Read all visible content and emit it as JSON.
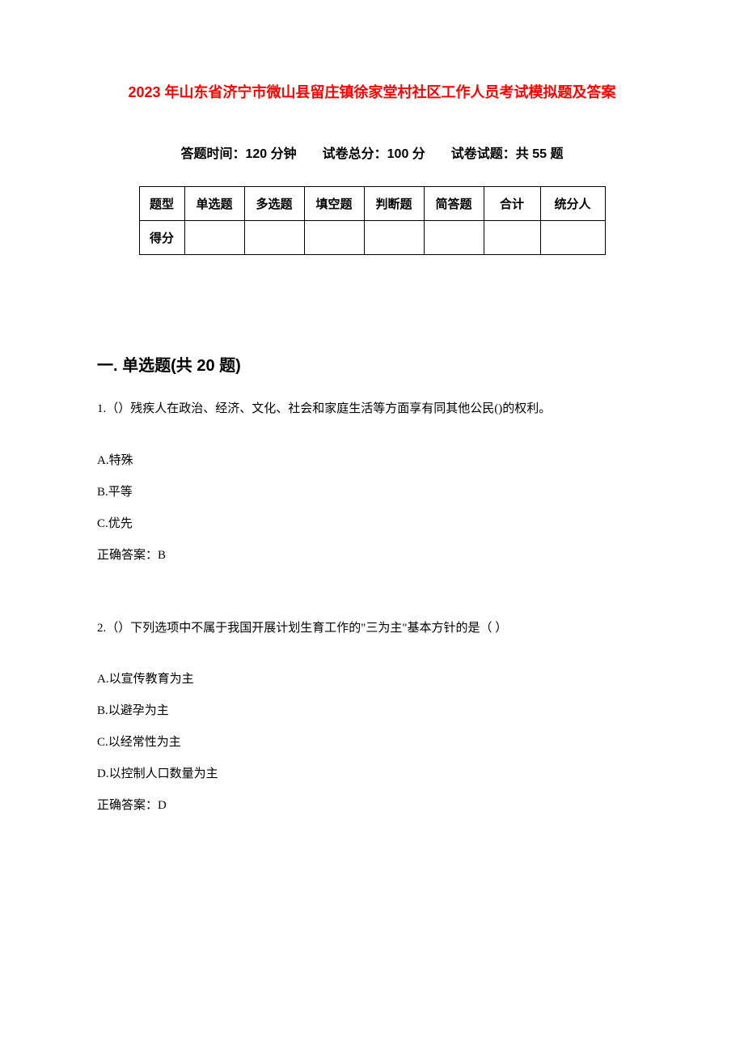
{
  "document": {
    "title": "2023 年山东省济宁市微山县留庄镇徐家堂村社区工作人员考试模拟题及答案",
    "title_color": "#ff0000",
    "title_fontsize": 18,
    "exam_info": "答题时间：120 分钟　　试卷总分：100 分　　试卷试题：共 55 题",
    "info_fontsize": 16,
    "body_fontsize": 15,
    "background_color": "#ffffff",
    "text_color": "#000000",
    "border_color": "#000000"
  },
  "score_table": {
    "row_labels": [
      "题型",
      "得分"
    ],
    "columns": [
      "单选题",
      "多选题",
      "填空题",
      "判断题",
      "简答题",
      "合计",
      "统分人"
    ]
  },
  "section": {
    "title": "一. 单选题(共 20 题)",
    "fontsize": 20
  },
  "questions": {
    "q1": {
      "text": "1.（）残疾人在政治、经济、文化、社会和家庭生活等方面享有同其他公民()的权利。",
      "options": {
        "a": "A.特殊",
        "b": "B.平等",
        "c": "C.优先"
      },
      "answer": "正确答案：B"
    },
    "q2": {
      "text": "2.（）下列选项中不属于我国开展计划生育工作的\"三为主\"基本方针的是（ ）",
      "options": {
        "a": "A.以宣传教育为主",
        "b": "B.以避孕为主",
        "c": "C.以经常性为主",
        "d": "D.以控制人口数量为主"
      },
      "answer": "正确答案：D"
    }
  }
}
